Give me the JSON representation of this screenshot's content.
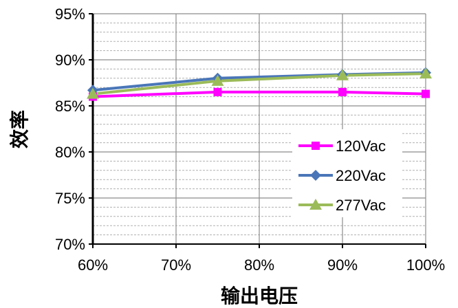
{
  "chart_data": {
    "type": "line",
    "title": "",
    "xlabel": "输出电压",
    "ylabel": "效率",
    "x": [
      "60%",
      "75%",
      "90%",
      "100%"
    ],
    "x_numeric": [
      60,
      75,
      90,
      100
    ],
    "xlim": [
      60,
      100
    ],
    "ylim": [
      70,
      95
    ],
    "x_ticks": [
      "60%",
      "70%",
      "80%",
      "90%",
      "100%"
    ],
    "y_ticks": [
      "70%",
      "75%",
      "80%",
      "85%",
      "90%",
      "95%"
    ],
    "grid": true,
    "legend_position": "right",
    "series": [
      {
        "name": "120Vac",
        "values": [
          86.0,
          86.5,
          86.5,
          86.3
        ],
        "color": "#ff00ff",
        "marker": "square"
      },
      {
        "name": "220Vac",
        "values": [
          86.7,
          88.0,
          88.4,
          88.6
        ],
        "color": "#4a76b8",
        "marker": "diamond"
      },
      {
        "name": "277Vac",
        "values": [
          86.3,
          87.7,
          88.3,
          88.5
        ],
        "color": "#9bbb59",
        "marker": "triangle"
      }
    ]
  }
}
